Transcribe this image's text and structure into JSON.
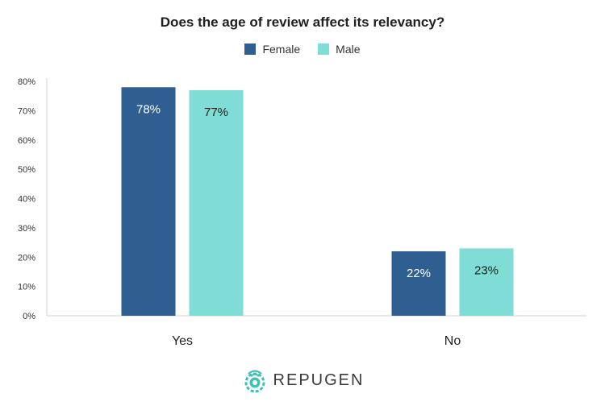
{
  "chart_data": {
    "type": "bar",
    "title": "Does the age of review affect its relevancy?",
    "categories": [
      "Yes",
      "No"
    ],
    "series": [
      {
        "name": "Female",
        "values": [
          78,
          22
        ],
        "labels": [
          "78%",
          "22%"
        ]
      },
      {
        "name": "Male",
        "values": [
          77,
          23
        ],
        "labels": [
          "77%",
          "23%"
        ]
      }
    ],
    "ylim": [
      0,
      80
    ],
    "yticks": [
      "0%",
      "10%",
      "20%",
      "30%",
      "40%",
      "50%",
      "60%",
      "70%",
      "80%"
    ],
    "grid": false,
    "legend": "top-center",
    "colors": {
      "Female": "#2f5f91",
      "Male": "#7fddd5"
    }
  },
  "brand": {
    "name": "REPUGEN",
    "logo_icon": "repugen-logo-icon",
    "color": "#40c0b8"
  }
}
